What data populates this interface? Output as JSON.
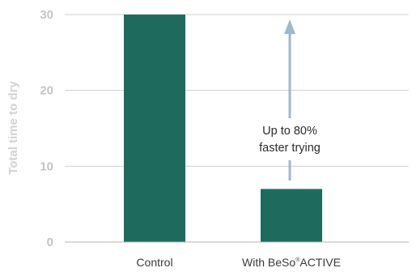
{
  "chart_data": {
    "type": "bar",
    "title": "",
    "xlabel": "",
    "ylabel": "Total time to dry",
    "ylim": [
      0,
      30
    ],
    "yticks": [
      "0",
      "10",
      "20",
      "30"
    ],
    "categories": [
      "Control",
      "With BeSo®ACTIVE"
    ],
    "category_parts": [
      {
        "main": "Control",
        "sup": "",
        "rest": ""
      },
      {
        "main": "With BeSo",
        "sup": "®",
        "rest": "ACTIVE"
      }
    ],
    "values": [
      30,
      7
    ],
    "bar_color": "#1e6b5e",
    "grid": true,
    "annotation": {
      "lines": [
        "Up to 80%",
        "faster trying"
      ],
      "arrow_color": "#9fb8c9",
      "arrow_from_value": 7,
      "arrow_to_value": 30
    }
  }
}
